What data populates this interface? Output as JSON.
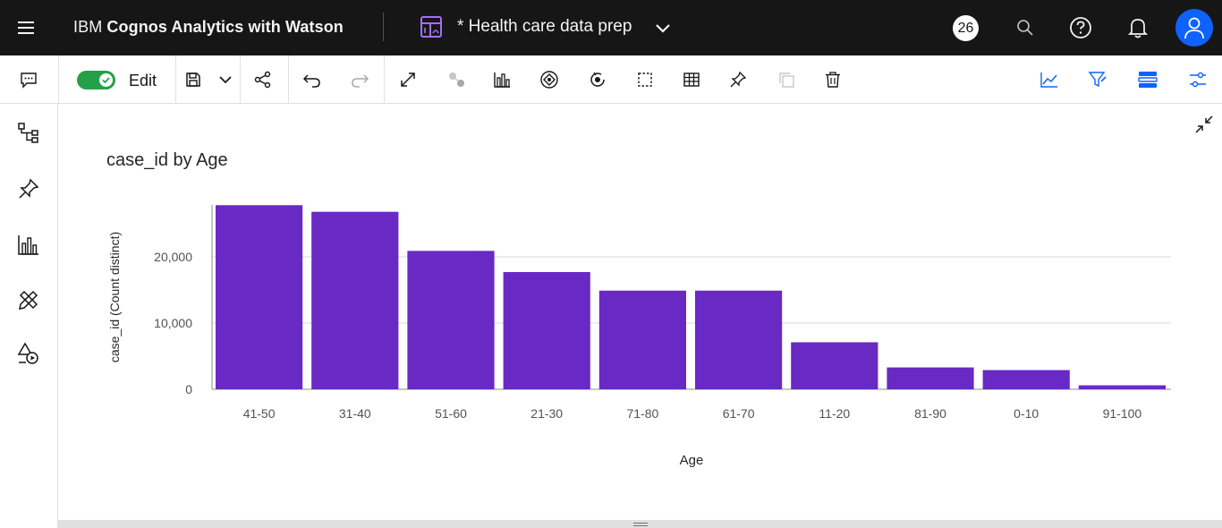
{
  "app": {
    "brand_prefix": "IBM ",
    "brand_name": "Cognos Analytics with Watson",
    "report_title": "* Health care data prep",
    "notification_count": "26"
  },
  "toolbar": {
    "edit_label": "Edit",
    "edit_enabled": true
  },
  "colors": {
    "topbar_bg": "#161616",
    "bar_color": "#6929c4",
    "accent_blue": "#0f62fe",
    "toggle_green": "#24a148"
  },
  "chart_data": {
    "type": "bar",
    "title": "case_id by Age",
    "xlabel": "Age",
    "ylabel": "case_id (Count distinct)",
    "categories": [
      "41-50",
      "31-40",
      "51-60",
      "21-30",
      "71-80",
      "61-70",
      "11-20",
      "81-90",
      "0-10",
      "91-100"
    ],
    "values": [
      27800,
      26800,
      20900,
      17700,
      14900,
      14900,
      7100,
      3300,
      2900,
      600
    ],
    "yticks": [
      0,
      10000,
      20000
    ],
    "ytick_labels": [
      "0",
      "10,000",
      "20,000"
    ],
    "ylim": [
      0,
      27800
    ],
    "grid": true
  }
}
